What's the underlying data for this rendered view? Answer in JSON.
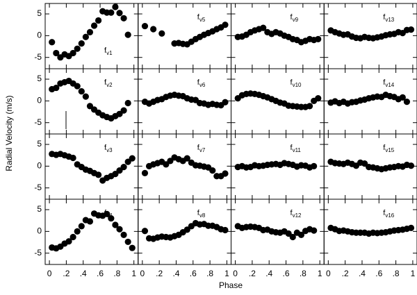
{
  "chart_data": {
    "type": "scatter",
    "xlabel": "Phase",
    "ylabel": "Radial Velocity (m/s)",
    "xlim": [
      -0.05,
      1.05
    ],
    "ylim": [
      -7.6,
      7.4
    ],
    "xticks": [
      0,
      {
        "value": 0.2,
        "label": ".2"
      },
      {
        "value": 0.4,
        "label": ".4"
      },
      {
        "value": 0.6,
        "label": ".6"
      },
      {
        "value": 0.8,
        "label": ".8"
      },
      1
    ],
    "yticks": [
      -5,
      0,
      5
    ],
    "color": "#000000",
    "x": [
      0.03,
      0.08,
      0.13,
      0.18,
      0.23,
      0.28,
      0.33,
      0.38,
      0.43,
      0.48,
      0.53,
      0.58,
      0.63,
      0.68,
      0.73,
      0.78,
      0.83,
      0.88,
      0.93,
      0.98
    ],
    "panels": [
      {
        "label": "f",
        "sub": "v1",
        "values": [
          -1.5,
          -4,
          -5,
          -4.3,
          -4.7,
          -4,
          -3,
          -1.8,
          -0.3,
          0.8,
          2.3,
          3.5,
          5.6,
          5.3,
          5.3,
          6.6,
          5.2,
          4,
          0.2,
          null
        ]
      },
      {
        "label": "f",
        "sub": "v2",
        "values": [
          2.7,
          3,
          4,
          4.3,
          4.6,
          4,
          3.4,
          2.2,
          1,
          -1.2,
          -2,
          -2.7,
          -3.3,
          -3.7,
          -4,
          -3.5,
          -3,
          -2.2,
          -0.5,
          null
        ]
      },
      {
        "label": "f",
        "sub": "v3",
        "values": [
          2.8,
          2.6,
          2.8,
          2.5,
          2.2,
          1.9,
          0.4,
          -0.2,
          -0.8,
          -1.1,
          -1.6,
          -2,
          -3.3,
          -2.7,
          -2.3,
          -1.8,
          -1,
          -0.2,
          1,
          1.8
        ]
      },
      {
        "label": "f",
        "sub": "v4",
        "values": [
          -3.7,
          -3.9,
          -3.5,
          -2.8,
          -2.3,
          -1.3,
          0,
          1.2,
          2.6,
          2.3,
          4.1,
          3.7,
          3.6,
          4,
          3,
          1.5,
          0.5,
          -0.8,
          -2.4,
          -3.8
        ]
      },
      {
        "label": "f",
        "sub": "v5",
        "values": [
          2.2,
          null,
          1.5,
          null,
          0.5,
          null,
          null,
          -1.8,
          -1.7,
          -1.9,
          -2,
          -1.4,
          -0.8,
          -0.3,
          0.2,
          0.6,
          1,
          1.5,
          1.9,
          2.5
        ]
      },
      {
        "label": "f",
        "sub": "v6",
        "values": [
          -0.2,
          -0.6,
          -0.2,
          0.2,
          0.4,
          0.9,
          1.2,
          1.4,
          1.2,
          1.1,
          0.6,
          0.3,
          0.2,
          -0.5,
          -0.6,
          -0.9,
          -0.7,
          -0.9,
          -1,
          -0.3
        ]
      },
      {
        "label": "f",
        "sub": "v7",
        "values": [
          -1.6,
          0,
          0.4,
          0.7,
          1,
          0.4,
          1.2,
          2,
          1.6,
          1.2,
          1.8,
          0.8,
          0.2,
          0.1,
          -0.1,
          -0.3,
          -1,
          -2.3,
          -2.3,
          -1.7
        ]
      },
      {
        "label": "f",
        "sub": "v8",
        "values": [
          0.1,
          -1.6,
          -1.7,
          -1.4,
          -1.2,
          -1.3,
          -1.4,
          -1.1,
          -0.8,
          -0.2,
          0.4,
          1.2,
          1.9,
          1.6,
          1.7,
          1.3,
          1.3,
          1,
          0.5,
          0.3
        ]
      },
      {
        "label": "f",
        "sub": "v9",
        "values": [
          -0.3,
          -0.2,
          0.2,
          0.8,
          1.2,
          1.5,
          1.8,
          0.8,
          0.4,
          0.8,
          0.5,
          0,
          -0.3,
          -0.8,
          -1,
          -1.5,
          -1.2,
          -0.8,
          -1,
          -0.8
        ]
      },
      {
        "label": "f",
        "sub": "v10",
        "values": [
          0.6,
          1.3,
          1.6,
          1.7,
          1.6,
          1.4,
          1.1,
          0.8,
          0.4,
          0,
          -0.4,
          -0.6,
          -1.1,
          -1.2,
          -1.3,
          -1.4,
          -1.4,
          -1.2,
          0,
          0.6
        ]
      },
      {
        "label": "f",
        "sub": "v11",
        "values": [
          -0.2,
          0,
          -0.3,
          -0.2,
          0.2,
          0,
          0.1,
          0.3,
          0.4,
          0.5,
          0.3,
          0.7,
          0.5,
          0.3,
          -0.1,
          0.2,
          0.1,
          -0.3,
          0,
          null
        ]
      },
      {
        "label": "f",
        "sub": "v12",
        "values": [
          1.2,
          0.8,
          1,
          1.1,
          1,
          0.8,
          0.3,
          0.4,
          0,
          -0.2,
          -0.3,
          0,
          -0.5,
          -1.3,
          -0.3,
          -0.8,
          0.1,
          0.5,
          0.2,
          null
        ]
      },
      {
        "label": "f",
        "sub": "v13",
        "values": [
          1.2,
          0.8,
          0.5,
          0.2,
          0.3,
          -0.2,
          -0.5,
          -0.6,
          -0.3,
          -0.5,
          -0.6,
          -0.4,
          -0.2,
          0.1,
          0.3,
          0.4,
          0.8,
          0.6,
          1.3,
          1.4
        ]
      },
      {
        "label": "f",
        "sub": "v14",
        "values": [
          -0.4,
          -0.1,
          -0.5,
          -0.2,
          -0.6,
          -0.3,
          -0.2,
          0.1,
          0.3,
          0.6,
          0.8,
          1,
          0.9,
          1.4,
          1.1,
          0.9,
          0.4,
          0.8,
          -0.2,
          null
        ]
      },
      {
        "label": "f",
        "sub": "v15",
        "values": [
          1,
          0.7,
          0.6,
          0.5,
          0.8,
          0.5,
          0.1,
          0.8,
          0.6,
          -0.2,
          -0.3,
          -0.5,
          -0.7,
          -0.5,
          -0.3,
          -0.2,
          0,
          -0.1,
          0.3,
          0.1
        ]
      },
      {
        "label": "f",
        "sub": "v16",
        "values": [
          0.8,
          0.5,
          0.1,
          0.2,
          0,
          -0.2,
          -0.3,
          -0.3,
          -0.3,
          -0.5,
          -0.3,
          -0.4,
          -0.3,
          -0.2,
          0,
          0.2,
          0.3,
          0.4,
          0.6,
          0.8
        ]
      }
    ]
  }
}
